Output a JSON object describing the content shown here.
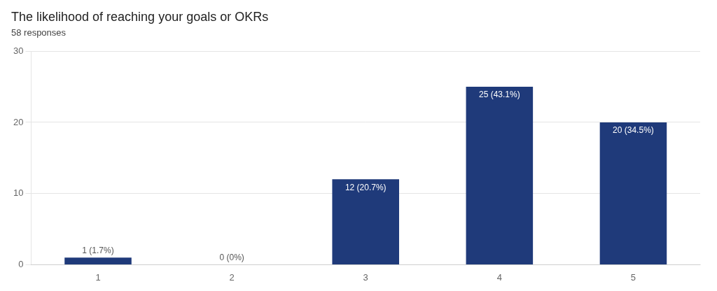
{
  "chart_data": {
    "type": "bar",
    "title": "The likelihood of reaching your goals or OKRs",
    "subtitle": "58 responses",
    "categories": [
      "1",
      "2",
      "3",
      "4",
      "5"
    ],
    "values": [
      1,
      0,
      12,
      25,
      20
    ],
    "value_labels": [
      "1 (1.7%)",
      "0 (0%)",
      "12 (20.7%)",
      "25 (43.1%)",
      "20 (34.5%)"
    ],
    "color": "#1F3A7A",
    "ylim": [
      0,
      30
    ],
    "yticks": [
      0,
      10,
      20,
      30
    ],
    "grid": true
  }
}
